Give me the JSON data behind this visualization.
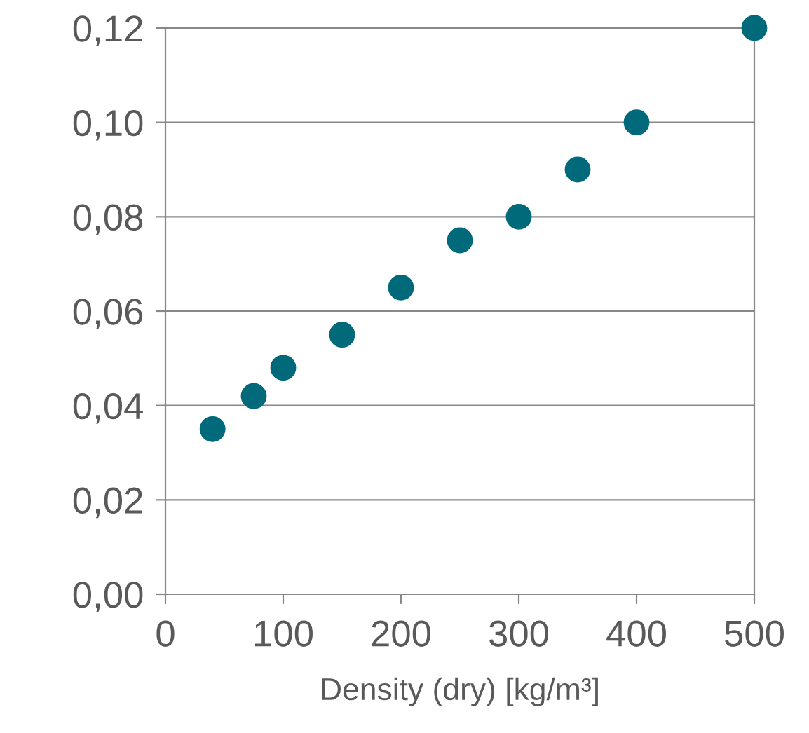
{
  "chart_data": {
    "type": "scatter",
    "xlabel": "Density (dry) [kg/m³]",
    "x": [
      40,
      75,
      100,
      150,
      200,
      250,
      300,
      350,
      400,
      500
    ],
    "series": [
      {
        "color": "#00697a",
        "values": [
          0.035,
          0.042,
          0.048,
          0.055,
          0.065,
          0.075,
          0.08,
          0.09,
          0.1,
          0.12
        ]
      }
    ],
    "xlim": [
      0,
      500
    ],
    "xticks": [
      0,
      100,
      200,
      300,
      400,
      500
    ],
    "ylim": [
      0,
      0.12
    ],
    "yticks": [
      {
        "value": 0,
        "label": "0,00"
      },
      {
        "value": 0.02,
        "label": "0,02"
      },
      {
        "value": 0.04,
        "label": "0,04"
      },
      {
        "value": 0.06,
        "label": "0,06"
      },
      {
        "value": 0.08,
        "label": "0,08"
      },
      {
        "value": 0.1,
        "label": "0,10"
      },
      {
        "value": 0.12,
        "label": "0,12"
      }
    ],
    "grid": "y",
    "marker": "circle"
  }
}
